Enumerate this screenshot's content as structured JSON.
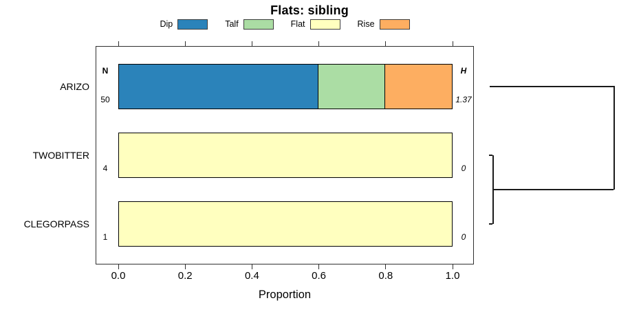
{
  "title": "Flats: sibling",
  "legend": {
    "items": [
      {
        "label": "Dip",
        "color": "#2B83BA"
      },
      {
        "label": "Talf",
        "color": "#ABDDA4"
      },
      {
        "label": "Flat",
        "color": "#FFFFBF"
      },
      {
        "label": "Rise",
        "color": "#FDAE61"
      }
    ]
  },
  "axis": {
    "xlabel": "Proportion",
    "tick_labels": [
      "0.0",
      "0.2",
      "0.4",
      "0.6",
      "0.8",
      "1.0"
    ]
  },
  "columns": {
    "n_header": "N",
    "h_header": "H"
  },
  "chart_data": {
    "type": "bar",
    "stacked": true,
    "orientation": "horizontal",
    "title": "Flats: sibling",
    "xlabel": "Proportion",
    "xlim": [
      0,
      1
    ],
    "x_ticks": [
      0.0,
      0.2,
      0.4,
      0.6,
      0.8,
      1.0
    ],
    "x_ticks_mirrored_top": true,
    "legend_position": "top",
    "series_names": [
      "Dip",
      "Talf",
      "Flat",
      "Rise"
    ],
    "series_colors": [
      "#2B83BA",
      "#ABDDA4",
      "#FFFFBF",
      "#FDAE61"
    ],
    "categories": [
      "ARIZO",
      "TWOBITTER",
      "CLEGORPASS"
    ],
    "rows": [
      {
        "category": "ARIZO",
        "n": "50",
        "h": "1.37",
        "segments": [
          {
            "name": "Dip",
            "value": 0.6
          },
          {
            "name": "Talf",
            "value": 0.2
          },
          {
            "name": "Rise",
            "value": 0.2
          }
        ]
      },
      {
        "category": "TWOBITTER",
        "n": "4",
        "h": "0",
        "segments": [
          {
            "name": "Flat",
            "value": 1.0
          }
        ]
      },
      {
        "category": "CLEGORPASS",
        "n": "1",
        "h": "0",
        "segments": [
          {
            "name": "Flat",
            "value": 1.0
          }
        ]
      }
    ],
    "dendrogram": {
      "position": "right-margin",
      "topology": "((TWOBITTER,CLEGORPASS),ARIZO)",
      "joins": [
        {
          "members": [
            "TWOBITTER",
            "CLEGORPASS"
          ],
          "relative_height": "near zero"
        },
        {
          "members": [
            "(TWOBITTER,CLEGORPASS)",
            "ARIZO"
          ],
          "relative_height": "maximum"
        }
      ]
    }
  }
}
